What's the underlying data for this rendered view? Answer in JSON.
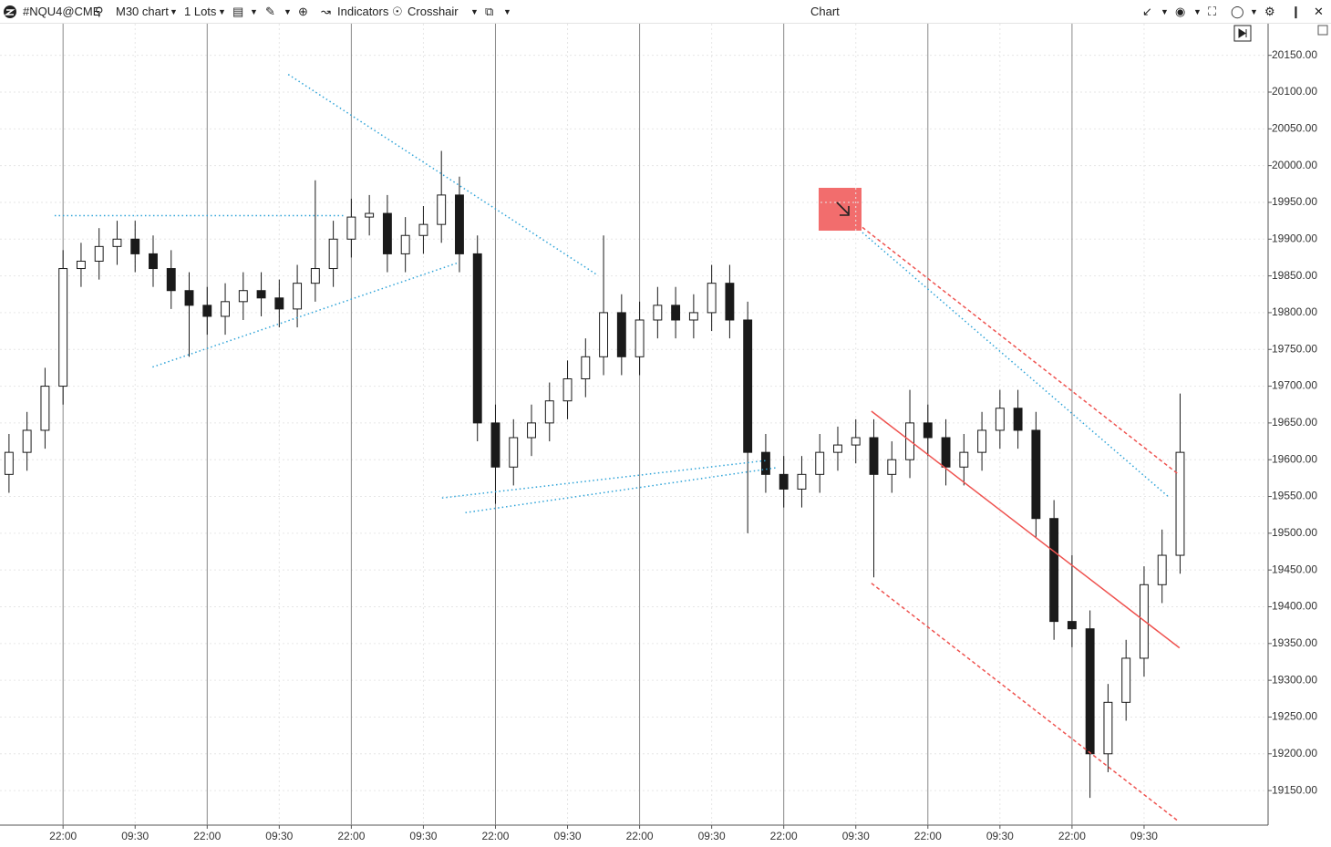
{
  "toolbar": {
    "symbol": "#NQU4@CME",
    "timeframe": "M30 chart",
    "lots": "1 Lots",
    "indicators": "Indicators",
    "crosshair": "Crosshair",
    "title": "Chart"
  },
  "chart_data": {
    "type": "candlestick",
    "x": [
      1.5,
      4.5,
      7.5,
      10.5,
      13.5,
      16.5,
      19.5,
      22.5,
      25.5,
      28.5,
      31.5,
      34.5,
      37.5,
      40.5,
      43.5,
      46.5,
      49.5,
      52.5,
      55.5,
      58.5,
      61.5,
      64.5,
      67.5,
      70.5,
      73.5,
      76.5,
      79.5,
      82.5,
      85.5,
      88.5,
      91.5,
      94.5,
      97.5,
      100.5,
      103.5,
      106.5,
      109.5,
      112.5,
      115.5,
      118.5,
      121.5,
      124.5,
      127.5,
      130.5,
      133.5,
      136.5,
      139.5,
      142.5,
      145.5,
      148.5,
      151.5,
      154.5,
      157.5,
      160.5,
      163.5,
      166.5,
      169.5,
      172.5,
      175.5,
      178.5,
      181.5,
      184.5,
      187.5,
      190.5,
      193.5,
      196.5
    ],
    "open": [
      19580,
      19610,
      19640,
      19700,
      19860,
      19870,
      19890,
      19900,
      19880,
      19860,
      19830,
      19810,
      19795,
      19815,
      19830,
      19820,
      19805,
      19840,
      19860,
      19900,
      19930,
      19935,
      19880,
      19905,
      19920,
      19960,
      19880,
      19650,
      19590,
      19630,
      19650,
      19680,
      19710,
      19740,
      19800,
      19740,
      19790,
      19810,
      19790,
      19800,
      19840,
      19790,
      19610,
      19580,
      19560,
      19580,
      19610,
      19620,
      19630,
      19580,
      19600,
      19650,
      19630,
      19590,
      19610,
      19640,
      19670,
      19640,
      19520,
      19380,
      19370,
      19200,
      19270,
      19330,
      19430,
      19470
    ],
    "high": [
      19635,
      19665,
      19725,
      19885,
      19895,
      19915,
      19925,
      19925,
      19905,
      19885,
      19855,
      19835,
      19840,
      19855,
      19855,
      19845,
      19865,
      19980,
      19925,
      19955,
      19960,
      19960,
      19930,
      19945,
      20020,
      19985,
      19905,
      19675,
      19655,
      19675,
      19705,
      19735,
      19765,
      19905,
      19825,
      19815,
      19835,
      19835,
      19825,
      19865,
      19865,
      19815,
      19635,
      19605,
      19605,
      19635,
      19645,
      19655,
      19655,
      19625,
      19695,
      19675,
      19655,
      19635,
      19665,
      19695,
      19695,
      19665,
      19545,
      19470,
      19395,
      19295,
      19355,
      19455,
      19505,
      19690
    ],
    "low": [
      19555,
      19585,
      19615,
      19675,
      19835,
      19845,
      19865,
      19855,
      19835,
      19805,
      19740,
      19770,
      19770,
      19790,
      19795,
      19780,
      19780,
      19815,
      19835,
      19875,
      19905,
      19855,
      19855,
      19880,
      19895,
      19855,
      19625,
      19540,
      19565,
      19605,
      19625,
      19655,
      19685,
      19715,
      19715,
      19715,
      19765,
      19765,
      19765,
      19775,
      19765,
      19500,
      19555,
      19535,
      19535,
      19555,
      19585,
      19595,
      19440,
      19555,
      19575,
      19605,
      19565,
      19565,
      19585,
      19615,
      19615,
      19495,
      19355,
      19345,
      19140,
      19175,
      19245,
      19305,
      19405,
      19445
    ],
    "close": [
      19610,
      19640,
      19700,
      19860,
      19870,
      19890,
      19900,
      19880,
      19860,
      19830,
      19810,
      19795,
      19815,
      19830,
      19820,
      19805,
      19840,
      19860,
      19900,
      19930,
      19935,
      19880,
      19905,
      19920,
      19960,
      19880,
      19650,
      19590,
      19630,
      19650,
      19680,
      19710,
      19740,
      19800,
      19740,
      19790,
      19810,
      19790,
      19800,
      19840,
      19790,
      19610,
      19580,
      19560,
      19580,
      19610,
      19620,
      19630,
      19580,
      19600,
      19650,
      19630,
      19590,
      19610,
      19640,
      19670,
      19640,
      19520,
      19380,
      19370,
      19200,
      19270,
      19330,
      19430,
      19470,
      19610
    ],
    "up_color": "#ffffff",
    "down_color": "#1a1a1a",
    "wick_color": "#1a1a1a",
    "xlim": [
      0,
      211
    ],
    "ylim": [
      19103,
      20193
    ],
    "xticks": [
      {
        "value": 10.5,
        "label": "22:00"
      },
      {
        "value": 22.5,
        "label": "09:30"
      },
      {
        "value": 34.5,
        "label": "22:00"
      },
      {
        "value": 46.5,
        "label": "09:30"
      },
      {
        "value": 58.5,
        "label": "22:00"
      },
      {
        "value": 70.5,
        "label": "09:30"
      },
      {
        "value": 82.5,
        "label": "22:00"
      },
      {
        "value": 94.5,
        "label": "09:30"
      },
      {
        "value": 106.5,
        "label": "22:00"
      },
      {
        "value": 118.5,
        "label": "09:30"
      },
      {
        "value": 130.5,
        "label": "22:00"
      },
      {
        "value": 142.5,
        "label": "09:30"
      },
      {
        "value": 154.5,
        "label": "22:00"
      },
      {
        "value": 166.5,
        "label": "09:30"
      },
      {
        "value": 178.5,
        "label": "22:00"
      },
      {
        "value": 190.5,
        "label": "09:30"
      }
    ],
    "yticks": [
      {
        "value": 20150,
        "label": "20150.00"
      },
      {
        "value": 20100,
        "label": "20100.00"
      },
      {
        "value": 20050,
        "label": "20050.00"
      },
      {
        "value": 20000,
        "label": "20000.00"
      },
      {
        "value": 19950,
        "label": "19950.00"
      },
      {
        "value": 19900,
        "label": "19900.00"
      },
      {
        "value": 19850,
        "label": "19850.00"
      },
      {
        "value": 19800,
        "label": "19800.00"
      },
      {
        "value": 19750,
        "label": "19750.00"
      },
      {
        "value": 19700,
        "label": "19700.00"
      },
      {
        "value": 19650,
        "label": "19650.00"
      },
      {
        "value": 19600,
        "label": "19600.00"
      },
      {
        "value": 19550,
        "label": "19550.00"
      },
      {
        "value": 19500,
        "label": "19500.00"
      },
      {
        "value": 19450,
        "label": "19450.00"
      },
      {
        "value": 19400,
        "label": "19400.00"
      },
      {
        "value": 19350,
        "label": "19350.00"
      },
      {
        "value": 19300,
        "label": "19300.00"
      },
      {
        "value": 19250,
        "label": "19250.00"
      },
      {
        "value": 19200,
        "label": "19200.00"
      },
      {
        "value": 19150,
        "label": "19150.00"
      }
    ],
    "grid": true,
    "trendlines": [
      {
        "color": "#2ea3d8",
        "style": "dotted",
        "x": [
          9.1,
          57.4
        ],
        "y": [
          19932,
          19932
        ]
      },
      {
        "color": "#2ea3d8",
        "style": "dotted",
        "x": [
          25.4,
          76.3
        ],
        "y": [
          19726,
          19868
        ]
      },
      {
        "color": "#2ea3d8",
        "style": "dotted",
        "x": [
          48.0,
          99.5
        ],
        "y": [
          20124,
          19851
        ]
      },
      {
        "color": "#2ea3d8",
        "style": "dotted",
        "x": [
          73.6,
          127.7
        ],
        "y": [
          19548,
          19599
        ]
      },
      {
        "color": "#2ea3d8",
        "style": "dotted",
        "x": [
          77.5,
          129.2
        ],
        "y": [
          19528,
          19589
        ]
      },
      {
        "color": "#2ea3d8",
        "style": "dotted",
        "x": [
          143.6,
          194.5
        ],
        "y": [
          19909,
          19550
        ]
      },
      {
        "color": "#ef5350",
        "style": "solid",
        "x": [
          145.1,
          196.4
        ],
        "y": [
          19666,
          19344
        ]
      },
      {
        "color": "#ef5350",
        "style": "dashed",
        "x": [
          143.6,
          196.1
        ],
        "y": [
          19916,
          19581
        ]
      },
      {
        "color": "#ef5350",
        "style": "dashed",
        "x": [
          145.1,
          196.1
        ],
        "y": [
          19432,
          19109
        ]
      }
    ]
  }
}
